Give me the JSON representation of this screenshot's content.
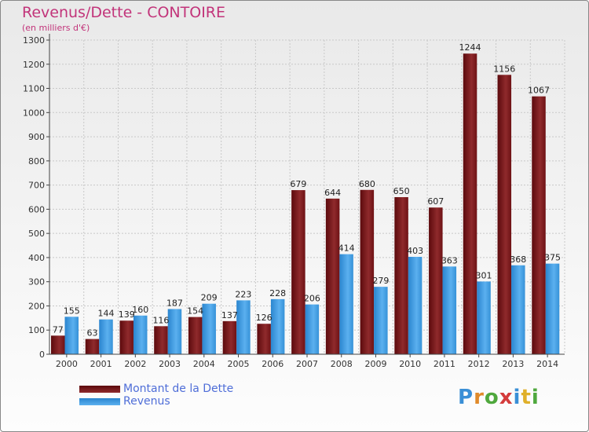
{
  "title": "Revenus/Dette - CONTOIRE",
  "subtitle": "(en milliers d'€)",
  "logo": "Proxiti",
  "chart_data": {
    "type": "bar",
    "categories": [
      "2000",
      "2001",
      "2002",
      "2003",
      "2004",
      "2005",
      "2006",
      "2007",
      "2008",
      "2009",
      "2010",
      "2011",
      "2012",
      "2013",
      "2014"
    ],
    "series": [
      {
        "name": "Montant de la Dette",
        "color": "#7a1518",
        "values": [
          77,
          63,
          139,
          116,
          154,
          137,
          126,
          679,
          644,
          680,
          650,
          607,
          1244,
          1156,
          1067
        ]
      },
      {
        "name": "Revenus",
        "color": "#3d9be0",
        "values": [
          155,
          144,
          160,
          187,
          209,
          223,
          228,
          206,
          414,
          279,
          403,
          363,
          301,
          368,
          375
        ]
      }
    ],
    "yticks": [
      0,
      100,
      200,
      300,
      400,
      500,
      600,
      700,
      800,
      900,
      1000,
      1100,
      1200,
      1300
    ],
    "ylim": [
      0,
      1300
    ],
    "grid": true,
    "legend_position": "bottom-left"
  }
}
